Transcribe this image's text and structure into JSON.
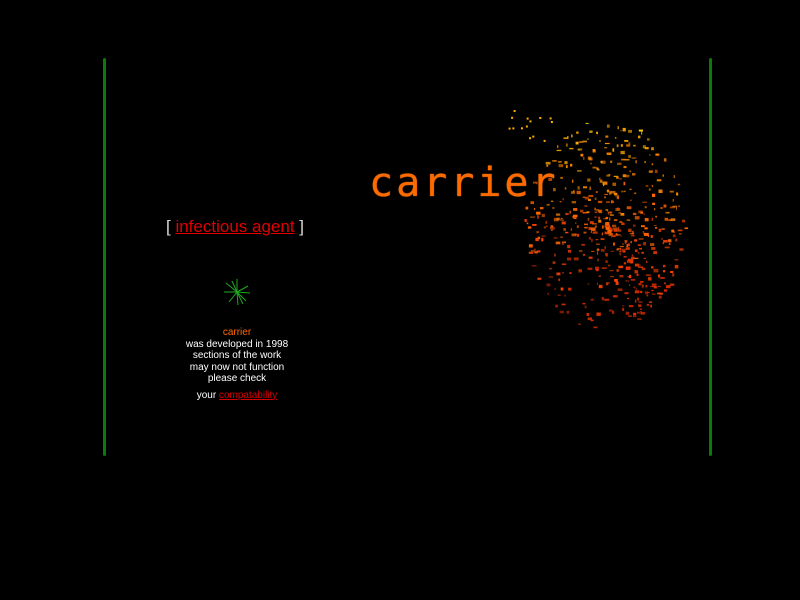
{
  "logo": {
    "word": "carrier"
  },
  "agent": {
    "open_bracket": "[",
    "link_text": "infectious agent",
    "close_bracket": "]"
  },
  "info": {
    "brand": "carrier",
    "lines": [
      "was developed in 1998",
      "sections of the work",
      "may now not function",
      "please check"
    ],
    "your": "your",
    "compat_link": "compatability"
  },
  "colors": {
    "accent": "#ff6a00",
    "link": "#e00000",
    "rule": "#0a7a0a",
    "background": "#000000"
  }
}
